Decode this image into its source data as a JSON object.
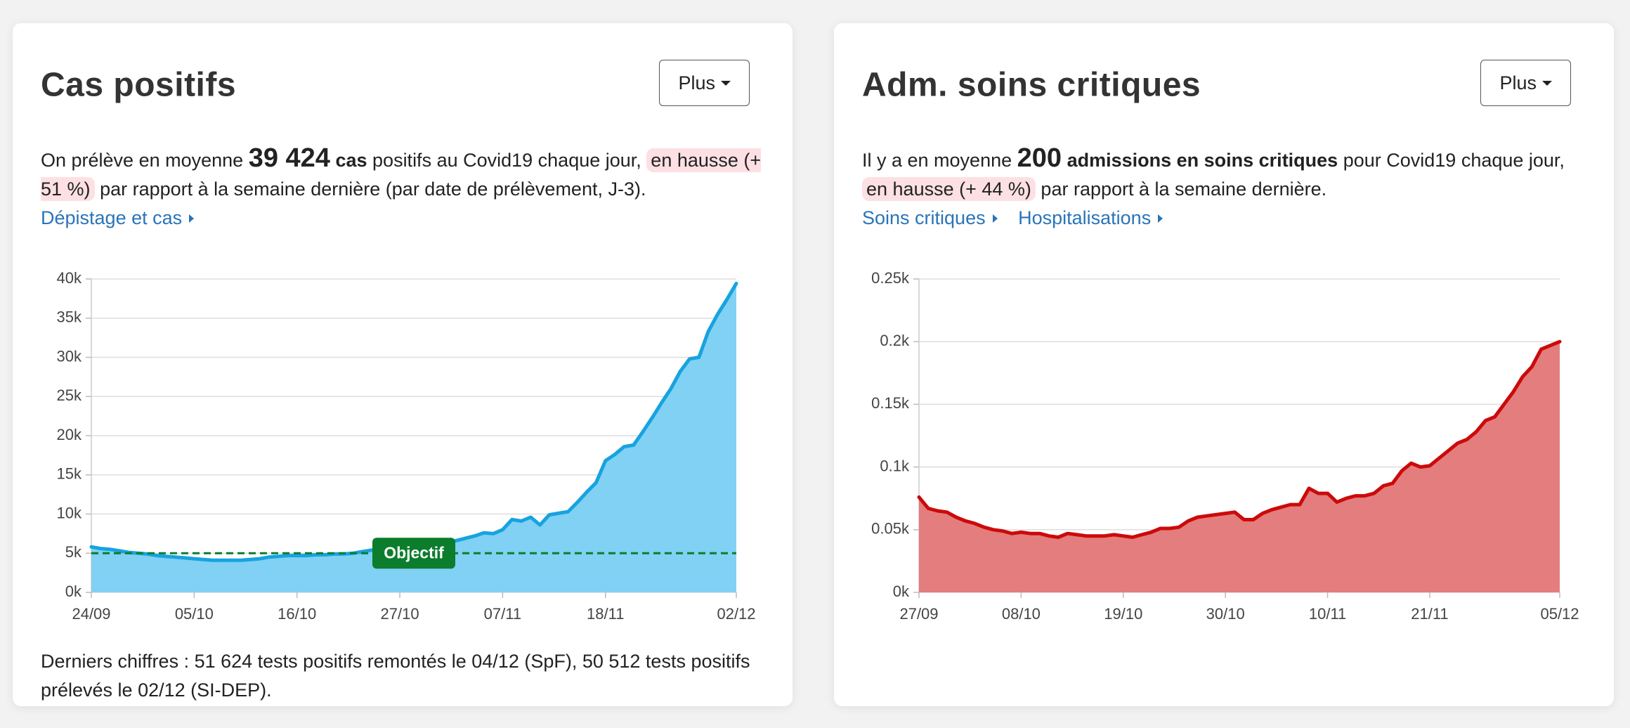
{
  "cards": [
    {
      "title": "Cas positifs",
      "button": "Plus",
      "summary": [
        "On prélève en moyenne",
        "39 424",
        "cas",
        "positifs au Covid19 chaque jour,",
        "en hausse (+ 51 %)",
        "par rapport à la semaine dernière (par date de prélèvement, J-3)."
      ],
      "links": [
        "Dépistage et cas"
      ],
      "footer": "Derniers chiffres : 51 624 tests positifs remontés le 04/12 (SpF), 50 512 tests positifs prélevés le 02/12 (SI-DEP)."
    },
    {
      "title": "Adm. soins critiques",
      "button": "Plus",
      "summary": [
        "Il y a en moyenne",
        "200",
        "admissions en soins critiques",
        "pour Covid19 chaque jour,",
        "en hausse (+ 44 %)",
        "par rapport à la semaine dernière."
      ],
      "links": [
        "Soins critiques",
        "Hospitalisations"
      ]
    }
  ],
  "chart_data": [
    {
      "type": "area",
      "categories": [
        "24/09",
        null,
        null,
        null,
        null,
        null,
        null,
        null,
        null,
        null,
        null,
        "05/10",
        null,
        null,
        null,
        null,
        null,
        null,
        null,
        null,
        null,
        null,
        "16/10",
        null,
        null,
        null,
        null,
        null,
        null,
        null,
        null,
        null,
        null,
        "27/10",
        null,
        null,
        null,
        null,
        null,
        null,
        null,
        null,
        null,
        null,
        "07/11",
        null,
        null,
        null,
        null,
        null,
        null,
        null,
        null,
        null,
        null,
        "18/11",
        null,
        null,
        null,
        null,
        null,
        null,
        null,
        null,
        null,
        null,
        null,
        null,
        null,
        "02/12"
      ],
      "series": [
        {
          "name": "Cas positifs",
          "color": "#17a3df",
          "fill": "#80d1f3",
          "values": [
            5800,
            5600,
            5500,
            5300,
            5100,
            5000,
            4900,
            4700,
            4600,
            4500,
            4400,
            4300,
            4200,
            4100,
            4100,
            4100,
            4100,
            4200,
            4300,
            4500,
            4600,
            4700,
            4700,
            4700,
            4800,
            4800,
            4900,
            4900,
            5000,
            5200,
            5400,
            5400,
            5500,
            5500,
            5600,
            5700,
            5900,
            6000,
            6300,
            6600,
            6900,
            7200,
            7600,
            7500,
            8000,
            9300,
            9100,
            9600,
            8600,
            9900,
            10100,
            10300,
            11500,
            12800,
            14000,
            16800,
            17600,
            18600,
            18800,
            20500,
            22300,
            24200,
            26000,
            28200,
            29800,
            30000,
            33300,
            35500,
            37400,
            39424
          ]
        }
      ],
      "ylim": [
        0,
        40000
      ],
      "yticks": [
        {
          "value": 0,
          "label": "0k"
        },
        {
          "value": 5000,
          "label": "5k"
        },
        {
          "value": 10000,
          "label": "10k"
        },
        {
          "value": 15000,
          "label": "15k"
        },
        {
          "value": 20000,
          "label": "20k"
        },
        {
          "value": 25000,
          "label": "25k"
        },
        {
          "value": 30000,
          "label": "30k"
        },
        {
          "value": 35000,
          "label": "35k"
        },
        {
          "value": 40000,
          "label": "40k"
        }
      ],
      "grid": true,
      "reference": {
        "value": 5000,
        "label": "Objectif",
        "color": "#0b7d2c"
      }
    },
    {
      "type": "area",
      "categories": [
        "27/09",
        null,
        null,
        null,
        null,
        null,
        null,
        null,
        null,
        null,
        null,
        "08/10",
        null,
        null,
        null,
        null,
        null,
        null,
        null,
        null,
        null,
        null,
        "19/10",
        null,
        null,
        null,
        null,
        null,
        null,
        null,
        null,
        null,
        null,
        "30/10",
        null,
        null,
        null,
        null,
        null,
        null,
        null,
        null,
        null,
        null,
        "10/11",
        null,
        null,
        null,
        null,
        null,
        null,
        null,
        null,
        null,
        null,
        "21/11",
        null,
        null,
        null,
        null,
        null,
        null,
        null,
        null,
        null,
        null,
        null,
        null,
        null,
        "05/12"
      ],
      "series": [
        {
          "name": "Adm. soins critiques",
          "color": "#cc0a0a",
          "fill": "#e47d7d",
          "values": [
            76,
            67,
            65,
            64,
            60,
            57,
            55,
            52,
            50,
            49,
            47,
            48,
            47,
            47,
            45,
            44,
            47,
            46,
            45,
            45,
            45,
            46,
            45,
            44,
            46,
            48,
            51,
            51,
            52,
            57,
            60,
            61,
            62,
            63,
            64,
            58,
            58,
            63,
            66,
            68,
            70,
            70,
            83,
            79,
            79,
            72,
            75,
            77,
            77,
            79,
            85,
            87,
            97,
            103,
            100,
            101,
            107,
            113,
            119,
            122,
            128,
            137,
            140,
            150,
            160,
            172,
            180,
            194,
            197,
            200
          ]
        }
      ],
      "ylim": [
        0,
        250
      ],
      "yticks": [
        {
          "value": 0,
          "label": "0k"
        },
        {
          "value": 50,
          "label": "0.05k"
        },
        {
          "value": 100,
          "label": "0.1k"
        },
        {
          "value": 150,
          "label": "0.15k"
        },
        {
          "value": 200,
          "label": "0.2k"
        },
        {
          "value": 250,
          "label": "0.25k"
        }
      ],
      "grid": true
    }
  ]
}
